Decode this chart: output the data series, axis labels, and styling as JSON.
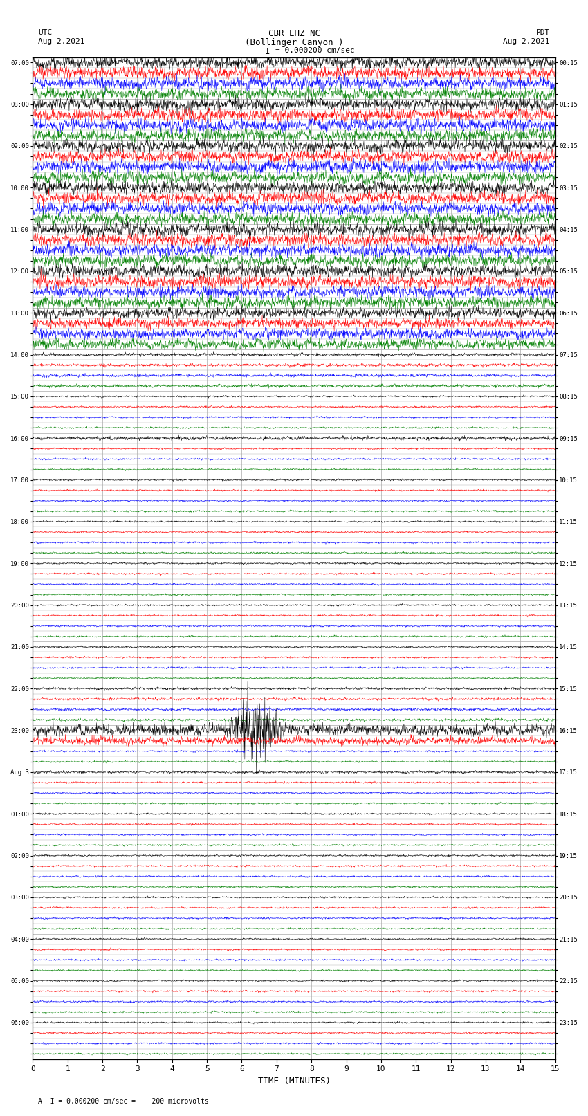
{
  "title_line1": "CBR EHZ NC",
  "title_line2": "(Bollinger Canyon )",
  "scale_label": "= 0.000200 cm/sec",
  "left_label_top": "UTC",
  "left_label_date": "Aug 2,2021",
  "right_label_top": "PDT",
  "right_label_date": "Aug 2,2021",
  "bottom_label": "TIME (MINUTES)",
  "footnote": "A  I = 0.000200 cm/sec =    200 microvolts",
  "xlabel_ticks": [
    0,
    1,
    2,
    3,
    4,
    5,
    6,
    7,
    8,
    9,
    10,
    11,
    12,
    13,
    14,
    15
  ],
  "utc_times": [
    "07:00",
    "",
    "",
    "",
    "08:00",
    "",
    "",
    "",
    "09:00",
    "",
    "",
    "",
    "10:00",
    "",
    "",
    "",
    "11:00",
    "",
    "",
    "",
    "12:00",
    "",
    "",
    "",
    "13:00",
    "",
    "",
    "",
    "14:00",
    "",
    "",
    "",
    "15:00",
    "",
    "",
    "",
    "16:00",
    "",
    "",
    "",
    "17:00",
    "",
    "",
    "",
    "18:00",
    "",
    "",
    "",
    "19:00",
    "",
    "",
    "",
    "20:00",
    "",
    "",
    "",
    "21:00",
    "",
    "",
    "",
    "22:00",
    "",
    "",
    "",
    "23:00",
    "",
    "",
    "",
    "Aug 3",
    "",
    "",
    "",
    "01:00",
    "",
    "",
    "",
    "02:00",
    "",
    "",
    "",
    "03:00",
    "",
    "",
    "",
    "04:00",
    "",
    "",
    "",
    "05:00",
    "",
    "",
    "",
    "06:00",
    "",
    "",
    ""
  ],
  "pdt_times": [
    "00:15",
    "",
    "",
    "",
    "01:15",
    "",
    "",
    "",
    "02:15",
    "",
    "",
    "",
    "03:15",
    "",
    "",
    "",
    "04:15",
    "",
    "",
    "",
    "05:15",
    "",
    "",
    "",
    "06:15",
    "",
    "",
    "",
    "07:15",
    "",
    "",
    "",
    "08:15",
    "",
    "",
    "",
    "09:15",
    "",
    "",
    "",
    "10:15",
    "",
    "",
    "",
    "11:15",
    "",
    "",
    "",
    "12:15",
    "",
    "",
    "",
    "13:15",
    "",
    "",
    "",
    "14:15",
    "",
    "",
    "",
    "15:15",
    "",
    "",
    "",
    "16:15",
    "",
    "",
    "",
    "17:15",
    "",
    "",
    "",
    "18:15",
    "",
    "",
    "",
    "19:15",
    "",
    "",
    "",
    "20:15",
    "",
    "",
    "",
    "21:15",
    "",
    "",
    "",
    "22:15",
    "",
    "",
    "",
    "23:15",
    "",
    "",
    ""
  ],
  "colors": [
    "black",
    "red",
    "blue",
    "green"
  ],
  "n_rows": 96,
  "noise_seed": 42,
  "background": "white",
  "grid_color": "#aaaaaa",
  "fig_width": 8.5,
  "fig_height": 16.13,
  "dpi": 100
}
